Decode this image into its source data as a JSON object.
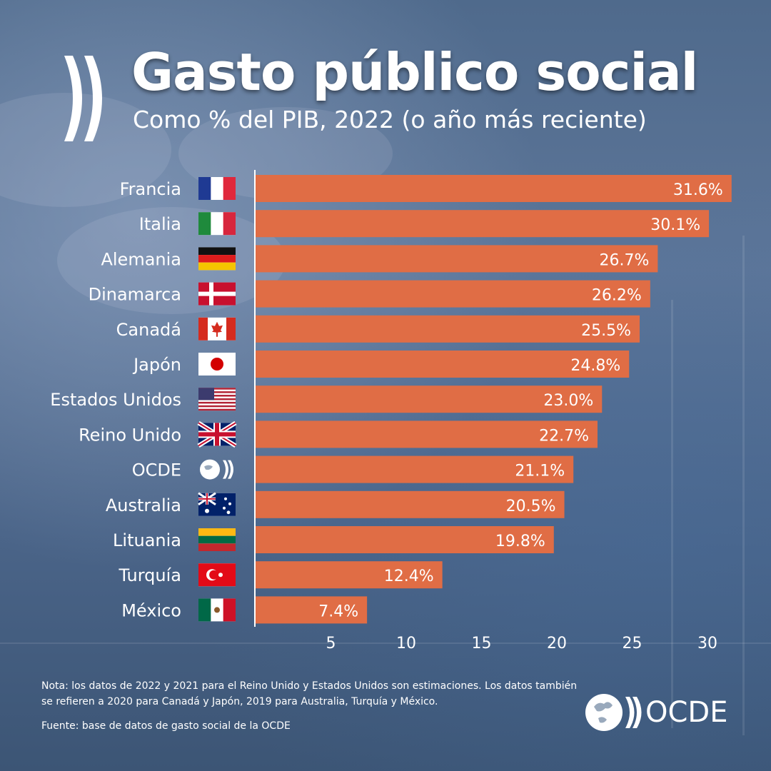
{
  "title": "Gasto público social",
  "subtitle": "Como % del PIB, 2022 (o año más reciente)",
  "note": "Nota: los datos de 2022 y 2021 para el Reino Unido y Estados Unidos son estimaciones. Los datos también se refieren a 2020 para Canadá y Japón, 2019 para Australia, Turquía y México.",
  "source": "Fuente: base de datos de gasto social de la OCDE",
  "brand": "OCDE",
  "colors": {
    "bar": "#e06d45",
    "text": "#ffffff",
    "background": "#55708f"
  },
  "chart_data": {
    "type": "bar",
    "orientation": "horizontal",
    "title": "Gasto público social",
    "subtitle": "Como % del PIB, 2022 (o año más reciente)",
    "xlabel": "",
    "ylabel": "",
    "categories": [
      "Francia",
      "Italia",
      "Alemania",
      "Dinamarca",
      "Canadá",
      "Japón",
      "Estados Unidos",
      "Reino Unido",
      "OCDE",
      "Australia",
      "Lituania",
      "Turquía",
      "México"
    ],
    "flags": [
      "flag-france",
      "flag-italy",
      "flag-germany",
      "flag-denmark",
      "flag-canada",
      "flag-japan",
      "flag-usa",
      "flag-uk",
      "logo-oecd",
      "flag-australia",
      "flag-lithuania",
      "flag-turkey",
      "flag-mexico"
    ],
    "values": [
      31.6,
      30.1,
      26.7,
      26.2,
      25.5,
      24.8,
      23.0,
      22.7,
      21.1,
      20.5,
      19.8,
      12.4,
      7.4
    ],
    "value_labels": [
      "31.6%",
      "30.1%",
      "26.7%",
      "26.2%",
      "25.5%",
      "24.8%",
      "23.0%",
      "22.7%",
      "21.1%",
      "20.5%",
      "19.8%",
      "12.4%",
      "7.4%"
    ],
    "xticks": [
      5,
      10,
      15,
      20,
      25,
      30
    ],
    "xlim": [
      0,
      32
    ],
    "grid": false,
    "legend": "none"
  }
}
